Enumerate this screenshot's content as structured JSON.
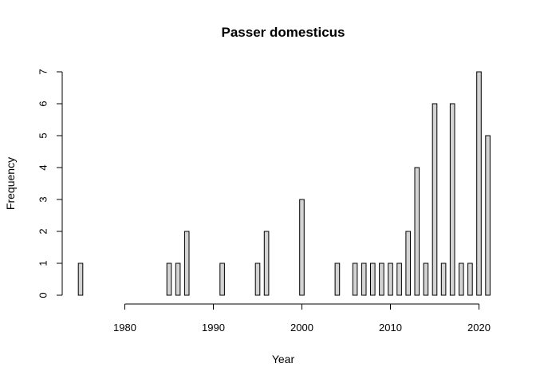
{
  "chart_data": {
    "type": "bar",
    "title": "Passer domesticus",
    "xlabel": "Year",
    "ylabel": "Frequency",
    "x": [
      1975,
      1976,
      1977,
      1978,
      1979,
      1980,
      1981,
      1982,
      1983,
      1984,
      1985,
      1986,
      1987,
      1988,
      1989,
      1990,
      1991,
      1992,
      1993,
      1994,
      1995,
      1996,
      1997,
      1998,
      1999,
      2000,
      2001,
      2002,
      2003,
      2004,
      2005,
      2006,
      2007,
      2008,
      2009,
      2010,
      2011,
      2012,
      2013,
      2014,
      2015,
      2016,
      2017,
      2018,
      2019,
      2020,
      2021
    ],
    "values": [
      1,
      0,
      0,
      0,
      0,
      0,
      0,
      0,
      0,
      0,
      1,
      1,
      2,
      0,
      0,
      0,
      1,
      0,
      0,
      0,
      1,
      2,
      0,
      0,
      0,
      3,
      0,
      0,
      0,
      1,
      0,
      1,
      1,
      1,
      1,
      1,
      1,
      2,
      4,
      1,
      6,
      1,
      6,
      1,
      1,
      7,
      5
    ],
    "xlim": [
      1975,
      2021
    ],
    "ylim": [
      0,
      7
    ],
    "xticks": [
      "1980",
      "1990",
      "2000",
      "2010",
      "2020"
    ],
    "yticks": [
      "0",
      "1",
      "2",
      "3",
      "4",
      "5",
      "6",
      "7"
    ],
    "colors": {
      "bar_fill": "#d3d3d3",
      "bar_stroke": "#000000"
    }
  }
}
